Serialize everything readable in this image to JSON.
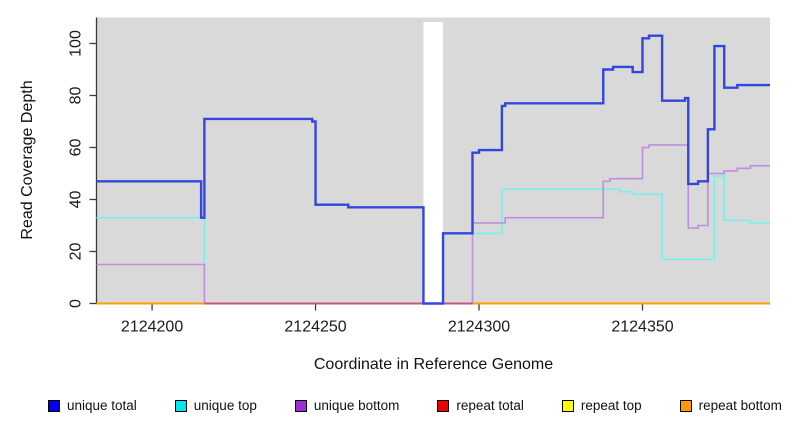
{
  "chart_data": {
    "type": "line",
    "subtype": "step-coverage-plot",
    "title": "",
    "xlabel": "Coordinate in Reference Genome",
    "ylabel": "Read Coverage Depth",
    "xlim": [
      2124183,
      2124389
    ],
    "ylim": [
      0,
      110
    ],
    "x_ticks": [
      2124200,
      2124250,
      2124300,
      2124350
    ],
    "y_ticks": [
      0,
      20,
      40,
      60,
      80,
      100
    ],
    "grid": "off",
    "plot_bg": "#d9d9d9",
    "axis_color": "#3a3a3a",
    "no_data_gap": {
      "x0": 2124283,
      "x1": 2124289
    },
    "zero_line_overlays": [
      {
        "x0": 2124216,
        "x1": 2124283,
        "color": "#c75480"
      },
      {
        "x0": 2124289,
        "x1": 2124298,
        "color": "#c75480"
      }
    ],
    "series": [
      {
        "name": "repeat total",
        "color": "#e00000",
        "width": 2,
        "layer": "below-gap",
        "points": [
          [
            2124183,
            0
          ]
        ]
      },
      {
        "name": "repeat top",
        "color": "#ffff00",
        "width": 2,
        "layer": "below-gap",
        "points": [
          [
            2124183,
            0
          ]
        ]
      },
      {
        "name": "repeat bottom",
        "color": "#ff9d00",
        "width": 2,
        "layer": "below-gap",
        "points": [
          [
            2124183,
            0
          ]
        ]
      },
      {
        "name": "unique top",
        "color": "#74f1ef",
        "width": 1.6,
        "layer": "below-gap",
        "points": [
          [
            2124183,
            33
          ],
          [
            2124216,
            0
          ],
          [
            2124289,
            27
          ],
          [
            2124307,
            44
          ],
          [
            2124343,
            43
          ],
          [
            2124347,
            42
          ],
          [
            2124356,
            17
          ],
          [
            2124372,
            49
          ],
          [
            2124375,
            32
          ],
          [
            2124383,
            31
          ]
        ]
      },
      {
        "name": "unique bottom",
        "color": "#bd8fdd",
        "width": 1.6,
        "layer": "below-gap",
        "points": [
          [
            2124183,
            15
          ],
          [
            2124216,
            0
          ],
          [
            2124298,
            31
          ],
          [
            2124308,
            33
          ],
          [
            2124338,
            47
          ],
          [
            2124340,
            48
          ],
          [
            2124350,
            60
          ],
          [
            2124352,
            61
          ],
          [
            2124364,
            29
          ],
          [
            2124367,
            30
          ],
          [
            2124370,
            50
          ],
          [
            2124375,
            51
          ],
          [
            2124379,
            52
          ],
          [
            2124383,
            53
          ]
        ]
      },
      {
        "name": "unique total",
        "color": "#3246dd",
        "width": 2.4,
        "layer": "above-gap",
        "points": [
          [
            2124183,
            47
          ],
          [
            2124215,
            33
          ],
          [
            2124216,
            71
          ],
          [
            2124249,
            70
          ],
          [
            2124250,
            38
          ],
          [
            2124260,
            37
          ],
          [
            2124283,
            0
          ],
          [
            2124289,
            27
          ],
          [
            2124298,
            58
          ],
          [
            2124300,
            59
          ],
          [
            2124307,
            76
          ],
          [
            2124308,
            77
          ],
          [
            2124338,
            90
          ],
          [
            2124341,
            91
          ],
          [
            2124347,
            89
          ],
          [
            2124350,
            102
          ],
          [
            2124352,
            103
          ],
          [
            2124356,
            78
          ],
          [
            2124363,
            79
          ],
          [
            2124364,
            46
          ],
          [
            2124367,
            47
          ],
          [
            2124370,
            67
          ],
          [
            2124372,
            99
          ],
          [
            2124375,
            83
          ],
          [
            2124379,
            84
          ]
        ]
      }
    ]
  },
  "legend": {
    "items": [
      {
        "label": "unique total",
        "color": "#0000ee"
      },
      {
        "label": "unique top",
        "color": "#00e5ee"
      },
      {
        "label": "unique bottom",
        "color": "#9a30d0"
      },
      {
        "label": "repeat total",
        "color": "#ee0000"
      },
      {
        "label": "repeat top",
        "color": "#ffff00"
      },
      {
        "label": "repeat bottom",
        "color": "#ff9900"
      }
    ]
  }
}
